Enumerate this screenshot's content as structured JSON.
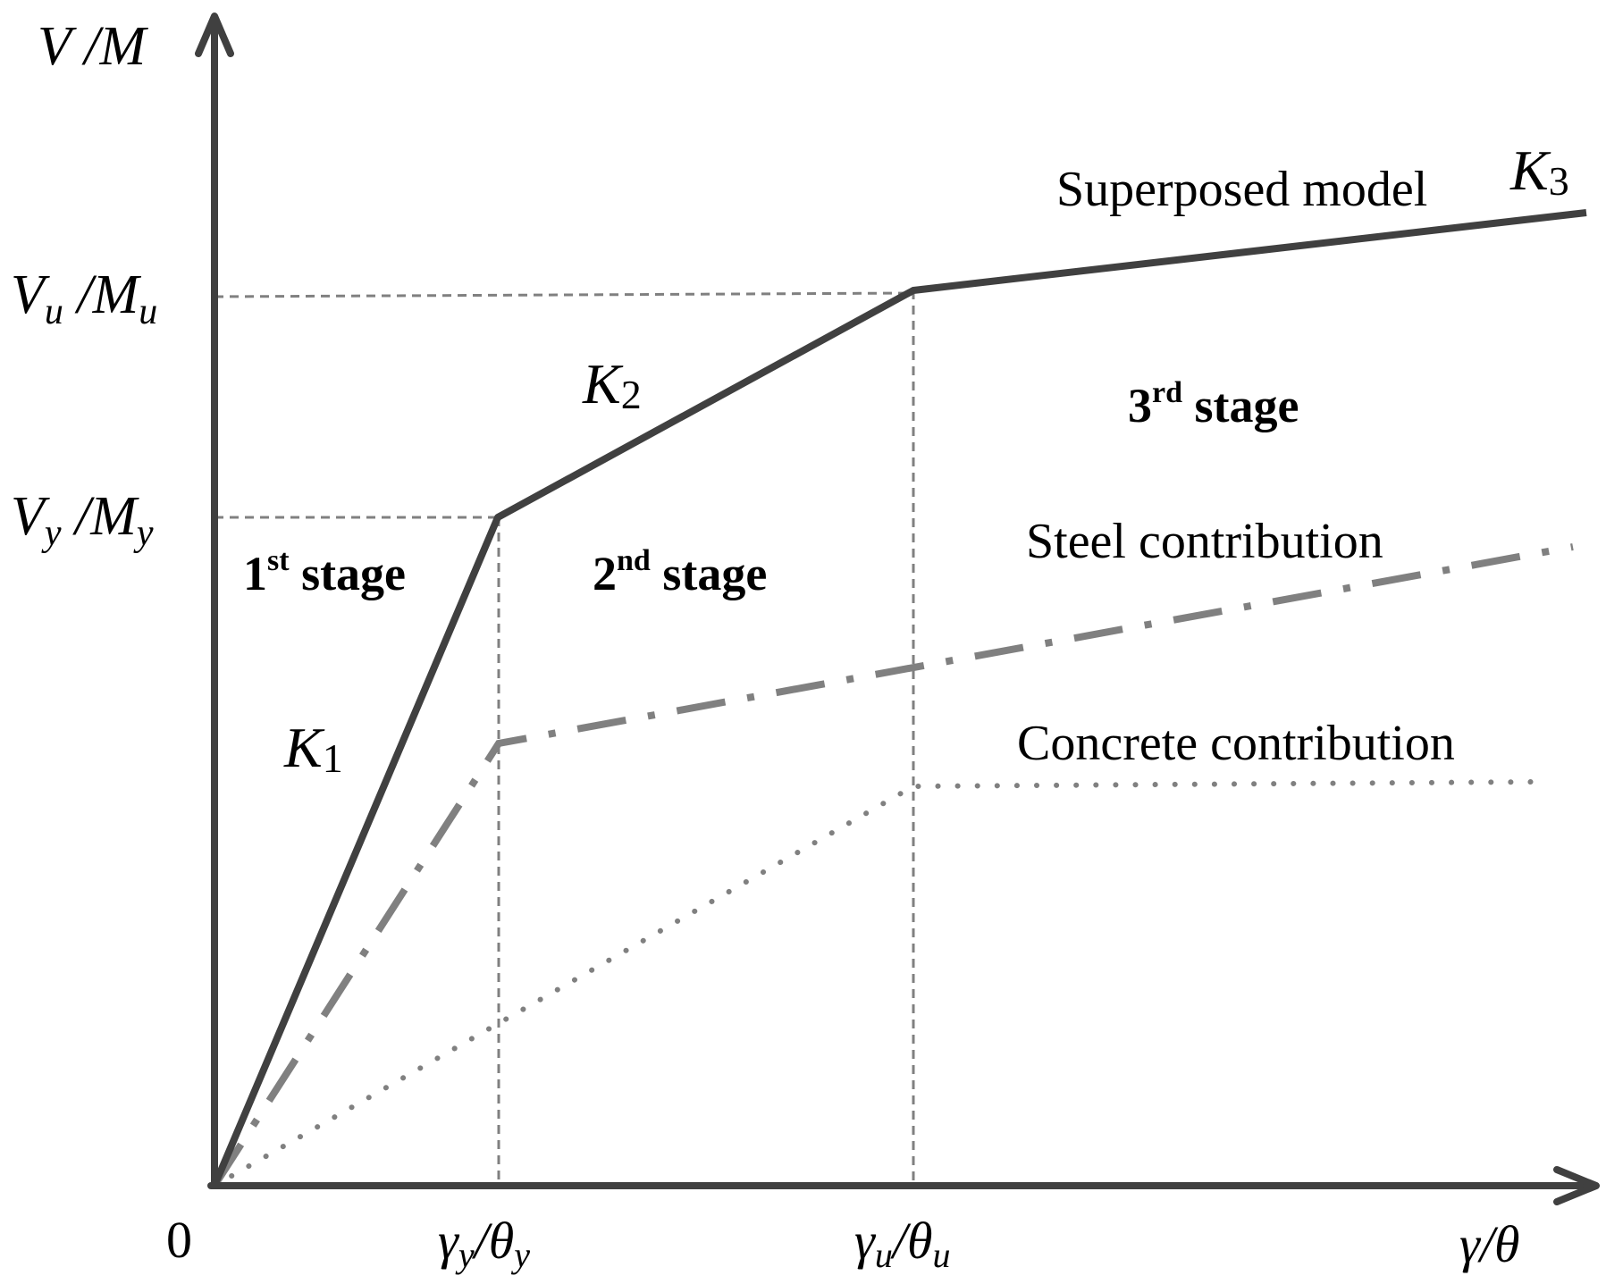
{
  "diagram": {
    "y_axis_label": {
      "main": "V",
      "sep": " /",
      "main2": "M"
    },
    "x_axis_label": {
      "a": "γ",
      "sep": "/",
      "b": "θ"
    },
    "origin_label": "0",
    "y_ticks": {
      "ultimate": {
        "v": "V",
        "v_sub": "u",
        "sep": " /",
        "m": "M",
        "m_sub": "u"
      },
      "yield": {
        "v": "V",
        "v_sub": "y",
        "sep": " /",
        "m": "M",
        "m_sub": "y"
      }
    },
    "x_ticks": {
      "yield": {
        "g": "γ",
        "g_sub": "y",
        "sep": "/",
        "t": "θ",
        "t_sub": "y"
      },
      "ultimate": {
        "g": "γ",
        "g_sub": "u",
        "sep": "/",
        "t": "θ",
        "t_sub": "u"
      }
    },
    "stiffness_labels": {
      "k1": {
        "main": "K",
        "sub": "1"
      },
      "k2": {
        "main": "K",
        "sub": "2"
      },
      "k3": {
        "main": "K",
        "sub": "3"
      }
    },
    "stages": {
      "first": {
        "num": "1",
        "sup": "st",
        "word": " stage"
      },
      "second": {
        "num": "2",
        "sup": "nd",
        "word": " stage"
      },
      "third": {
        "num": "3",
        "sup": "rd",
        "word": " stage"
      }
    },
    "curve_labels": {
      "superposed": "Superposed model",
      "steel": "Steel contribution",
      "concrete": "Concrete contribution"
    },
    "colors": {
      "axis": "#404040",
      "superposed": "#404040",
      "steel": "#808080",
      "concrete": "#808080",
      "guide": "#808080"
    }
  }
}
